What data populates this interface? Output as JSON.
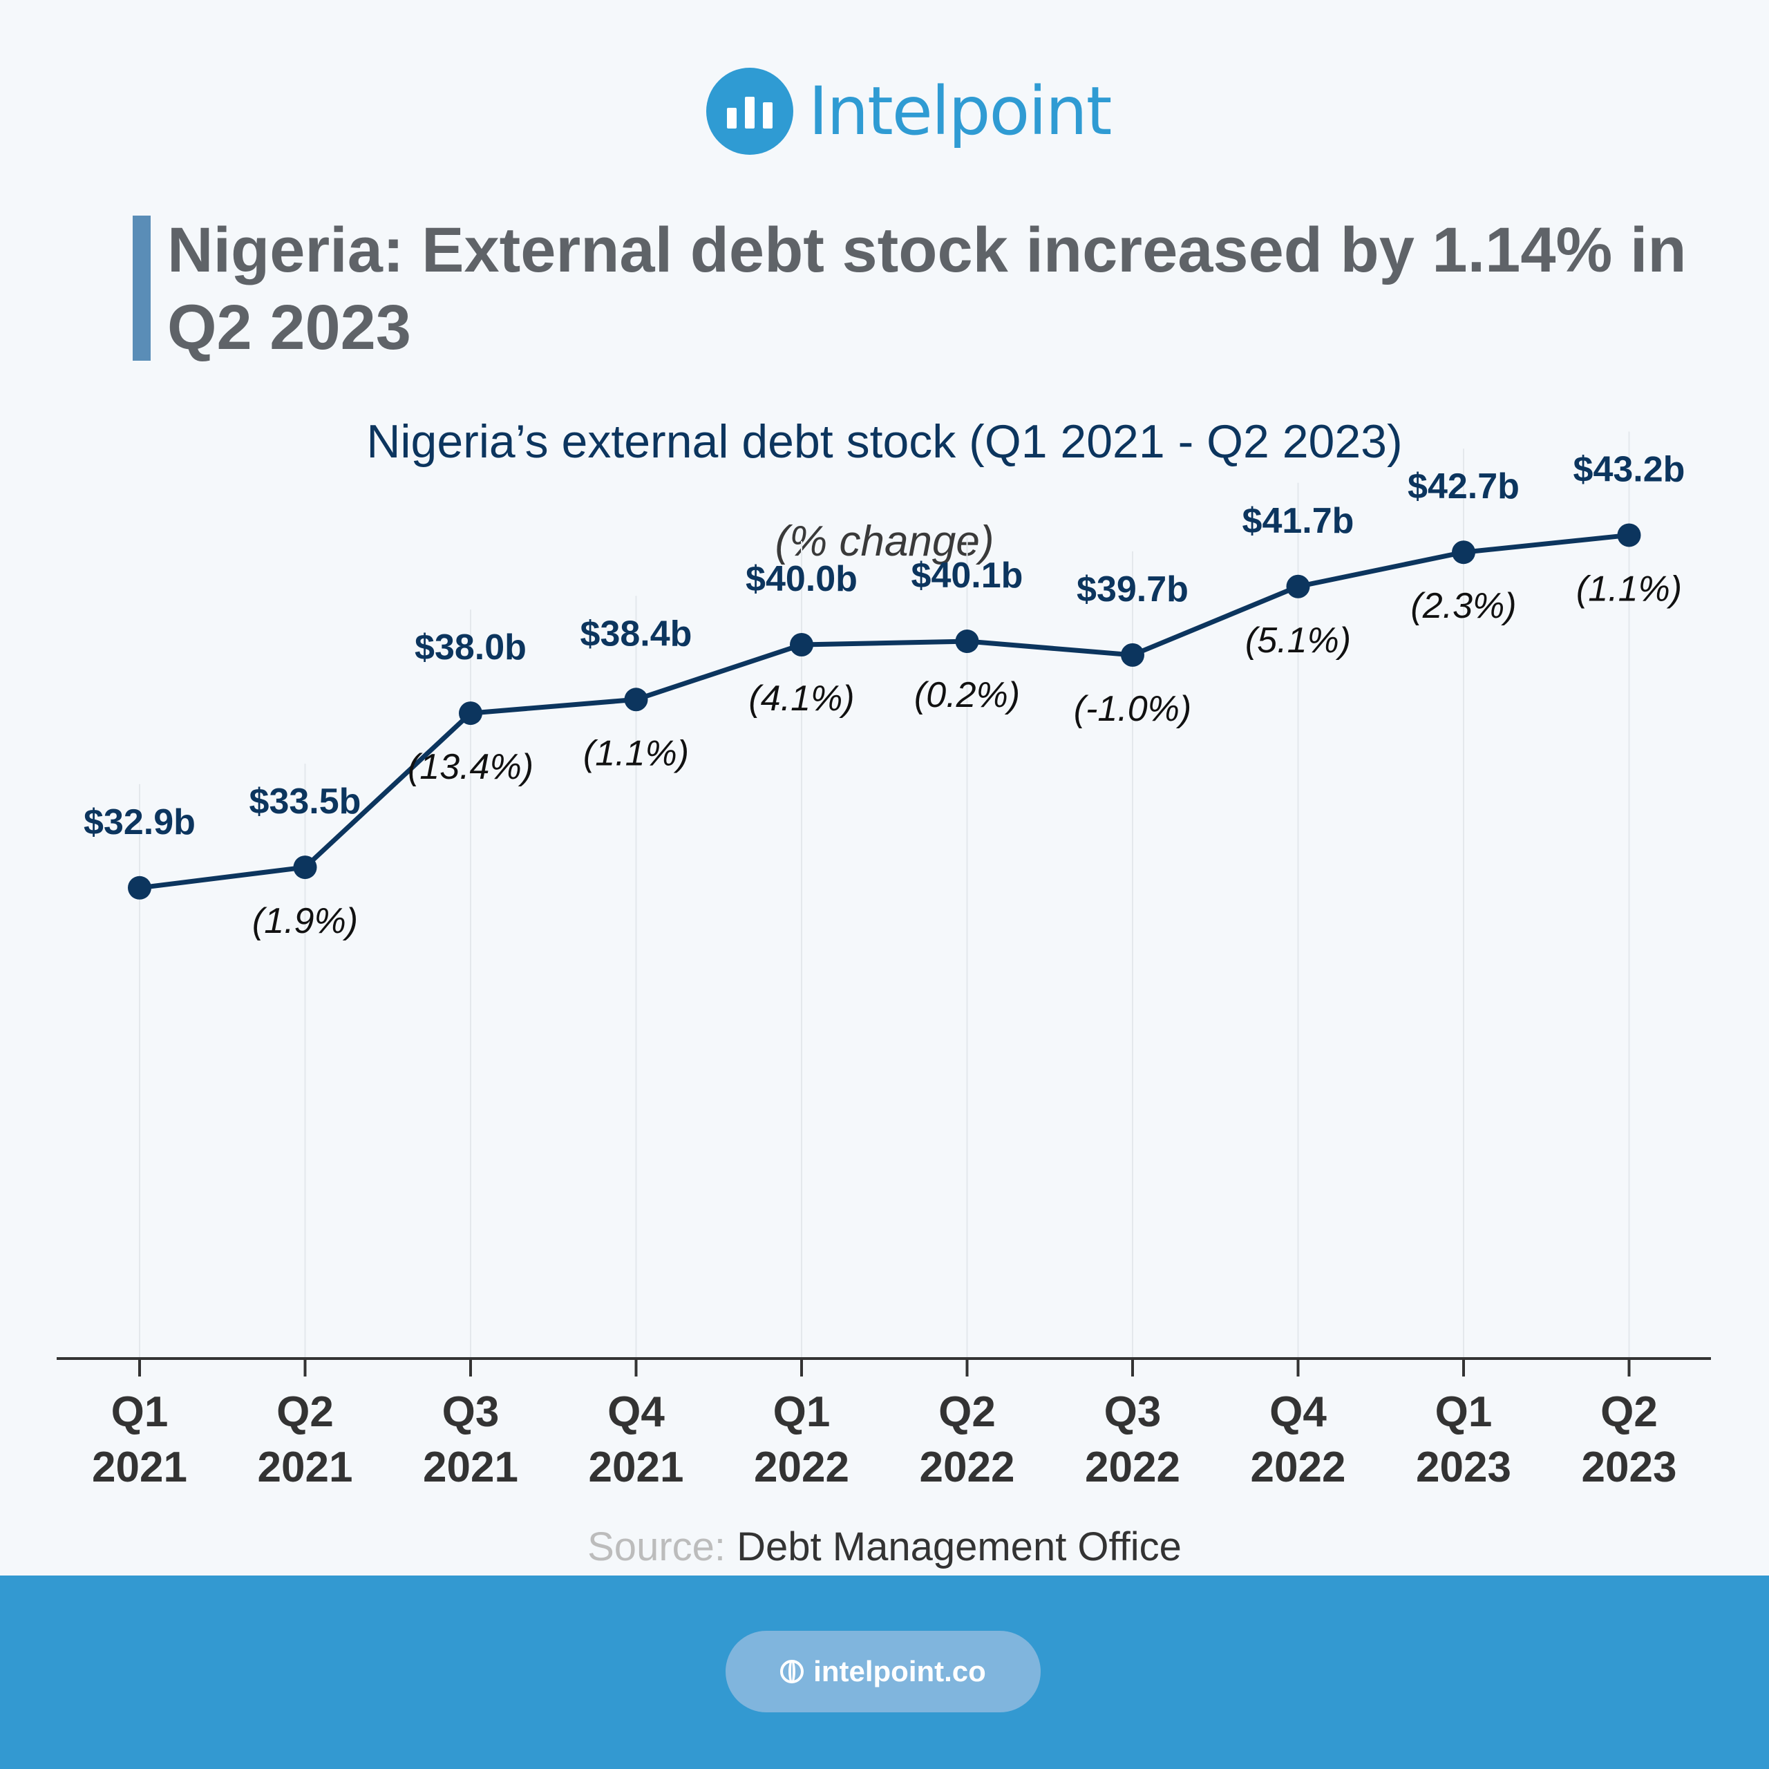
{
  "brand": {
    "name": "Intelpoint",
    "website": "intelpoint.co"
  },
  "headline": "Nigeria: External debt stock increased by 1.14% in Q2 2023",
  "subtitle": "Nigeria’s external debt stock (Q1 2021 - Q2 2023)",
  "unit_note": "(% change)",
  "source": {
    "prefix": "Source:",
    "name": "Debt Management Office"
  },
  "colors": {
    "line": "#0c355e",
    "accent": "#2f9bd3",
    "footer": "#3399d1",
    "headline": "#5f6368"
  },
  "chart_data": {
    "type": "line",
    "categories": [
      [
        "Q1",
        "2021"
      ],
      [
        "Q2",
        "2021"
      ],
      [
        "Q3",
        "2021"
      ],
      [
        "Q4",
        "2021"
      ],
      [
        "Q1",
        "2022"
      ],
      [
        "Q2",
        "2022"
      ],
      [
        "Q3",
        "2022"
      ],
      [
        "Q4",
        "2022"
      ],
      [
        "Q1",
        "2023"
      ],
      [
        "Q2",
        "2023"
      ]
    ],
    "values": [
      32.9,
      33.5,
      38.0,
      38.4,
      40.0,
      40.1,
      39.7,
      41.7,
      42.7,
      43.2
    ],
    "value_labels": [
      "$32.9b",
      "$33.5b",
      "$38.0b",
      "$38.4b",
      "$40.0b",
      "$40.1b",
      "$39.7b",
      "$41.7b",
      "$42.7b",
      "$43.2b"
    ],
    "change_labels": [
      "",
      "(1.9%)",
      "(13.4%)",
      "(1.1%)",
      "(4.1%)",
      "(0.2%)",
      "(-1.0%)",
      "(5.1%)",
      "(2.3%)",
      "(1.1%)"
    ],
    "ylim": [
      0,
      50
    ],
    "grid": true,
    "legend": "none"
  }
}
